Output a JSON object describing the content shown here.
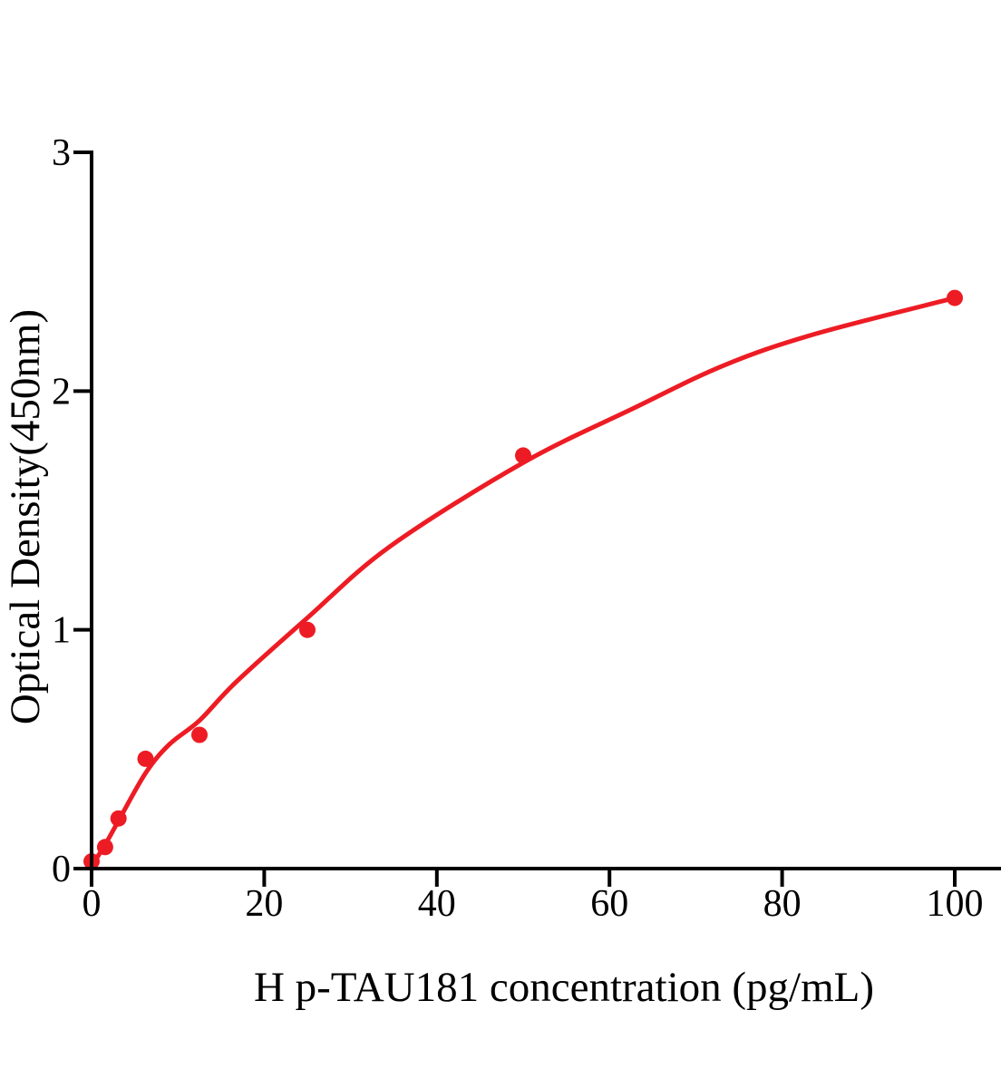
{
  "chart_data": {
    "type": "scatter",
    "title": "",
    "xlabel": "H p-TAU181 concentration (pg/mL)",
    "ylabel": "Optical Density(450nm)",
    "xlim": [
      0,
      105.4
    ],
    "ylim": [
      0,
      3
    ],
    "x_ticks": [
      0,
      20,
      40,
      60,
      80,
      100
    ],
    "x_tick_labels": [
      "0",
      "20",
      "40",
      "60",
      "80",
      "100"
    ],
    "y_ticks": [
      0,
      1,
      2,
      3
    ],
    "y_tick_labels": [
      "0",
      "1",
      "2",
      "3"
    ],
    "grid": false,
    "legend_position": "none",
    "axis_color": "#000000",
    "accent_color": "#ED1C24",
    "series": [
      {
        "name": "standard-points",
        "type": "scatter",
        "color": "#ED1C24",
        "marker_radius": 9,
        "x": [
          0,
          1.56,
          3.12,
          6.25,
          12.5,
          25,
          50,
          100
        ],
        "y": [
          0.03,
          0.09,
          0.21,
          0.46,
          0.56,
          1.0,
          1.73,
          2.39
        ]
      },
      {
        "name": "fitted-curve",
        "type": "line",
        "color": "#ED1C24",
        "stroke_width": 5,
        "x": [
          0,
          1.56,
          3.12,
          6.25,
          9,
          12.5,
          16.7,
          25,
          34.6,
          50,
          62.9,
          73.4,
          83.9,
          100
        ],
        "y": [
          0.01,
          0.1,
          0.2,
          0.4,
          0.52,
          0.62,
          0.78,
          1.05,
          1.35,
          1.7,
          1.93,
          2.11,
          2.24,
          2.39
        ]
      }
    ]
  }
}
